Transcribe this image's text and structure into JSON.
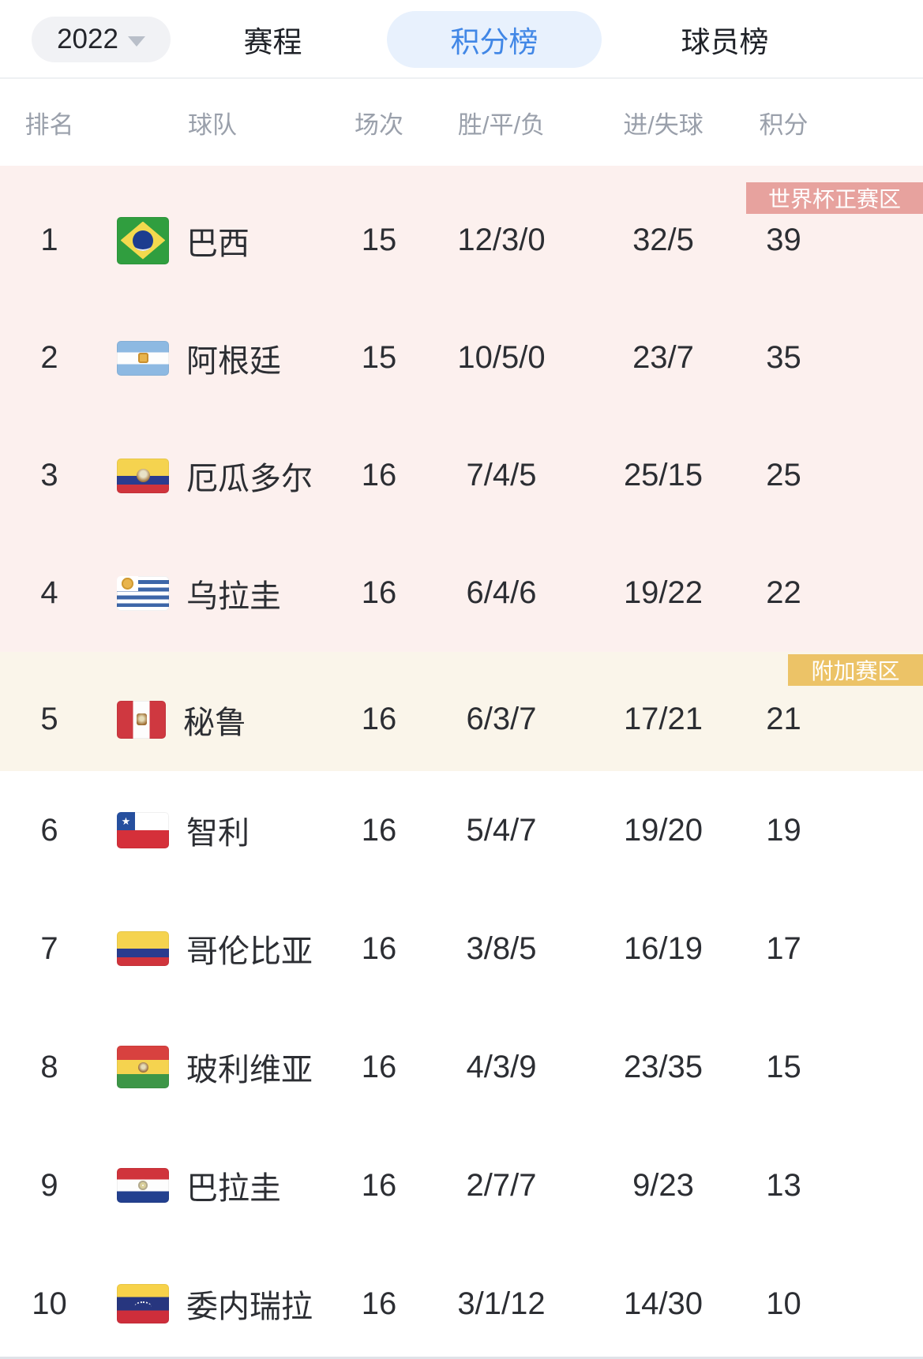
{
  "toolbar": {
    "season_selector": {
      "label": "2022",
      "caret_icon": "caret-down"
    },
    "tabs": [
      {
        "label": "赛程",
        "selected": false
      },
      {
        "label": "积分榜",
        "selected": true
      },
      {
        "label": "球员榜",
        "selected": false
      }
    ],
    "accent_color": "#4187e6",
    "selected_tab_bg": "#e8f1fd"
  },
  "table": {
    "columns": {
      "rank": "排名",
      "team": "球队",
      "games": "场次",
      "wdl": "胜/平/负",
      "goals": "进/失球",
      "points": "积分"
    },
    "zones": [
      {
        "id": "worldcup",
        "badge": "世界杯正赛区",
        "badge_color": "#e7a29e",
        "bg": "#fcf0ee",
        "rows": [
          {
            "rank": "1",
            "team": "巴西",
            "flag": "br",
            "games": "15",
            "wdl": "12/3/0",
            "goals": "32/5",
            "points": "39"
          },
          {
            "rank": "2",
            "team": "阿根廷",
            "flag": "ar",
            "games": "15",
            "wdl": "10/5/0",
            "goals": "23/7",
            "points": "35"
          },
          {
            "rank": "3",
            "team": "厄瓜多尔",
            "flag": "ec",
            "games": "16",
            "wdl": "7/4/5",
            "goals": "25/15",
            "points": "25"
          },
          {
            "rank": "4",
            "team": "乌拉圭",
            "flag": "uy",
            "games": "16",
            "wdl": "6/4/6",
            "goals": "19/22",
            "points": "22"
          }
        ]
      },
      {
        "id": "playoff",
        "badge": "附加赛区",
        "badge_color": "#ecc367",
        "bg": "#faf5ea",
        "rows": [
          {
            "rank": "5",
            "team": "秘鲁",
            "flag": "pe",
            "games": "16",
            "wdl": "6/3/7",
            "goals": "17/21",
            "points": "21"
          }
        ]
      },
      {
        "id": "rest",
        "badge": null,
        "badge_color": null,
        "bg": "#ffffff",
        "rows": [
          {
            "rank": "6",
            "team": "智利",
            "flag": "cl",
            "games": "16",
            "wdl": "5/4/7",
            "goals": "19/20",
            "points": "19"
          },
          {
            "rank": "7",
            "team": "哥伦比亚",
            "flag": "co",
            "games": "16",
            "wdl": "3/8/5",
            "goals": "16/19",
            "points": "17"
          },
          {
            "rank": "8",
            "team": "玻利维亚",
            "flag": "bo",
            "games": "16",
            "wdl": "4/3/9",
            "goals": "23/35",
            "points": "15"
          },
          {
            "rank": "9",
            "team": "巴拉圭",
            "flag": "py",
            "games": "16",
            "wdl": "2/7/7",
            "goals": "9/23",
            "points": "13"
          },
          {
            "rank": "10",
            "team": "委内瑞拉",
            "flag": "ve",
            "games": "16",
            "wdl": "3/1/12",
            "goals": "14/30",
            "points": "10"
          }
        ]
      }
    ]
  }
}
